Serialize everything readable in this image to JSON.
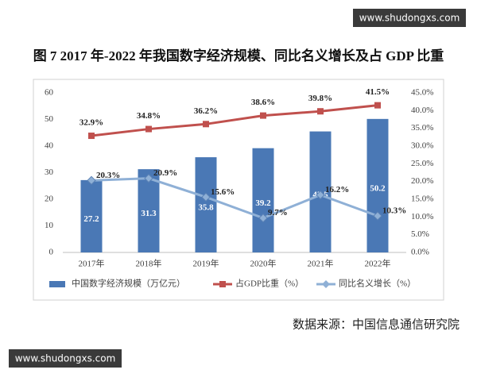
{
  "watermarks": [
    "www.shudongxs.com",
    "www.shudongxs.com"
  ],
  "source": "数据来源：中国信息通信研究院",
  "chart_data": {
    "type": "bar",
    "title": "图 7 2017 年-2022 年我国数字经济规模、同比名义增长及占 GDP 比重",
    "categories": [
      "2017年",
      "2018年",
      "2019年",
      "2020年",
      "2021年",
      "2022年"
    ],
    "ylim": [
      0,
      60
    ],
    "yticks": [
      0,
      10,
      20,
      30,
      40,
      50,
      60
    ],
    "y2lim": [
      0,
      45
    ],
    "y2ticks": [
      {
        "value": 0,
        "label": "0.0%"
      },
      {
        "value": 5,
        "label": "5.0%"
      },
      {
        "value": 10,
        "label": "10.0%"
      },
      {
        "value": 15,
        "label": "15.0%"
      },
      {
        "value": 20,
        "label": "20.0%"
      },
      {
        "value": 25,
        "label": "25.0%"
      },
      {
        "value": 30,
        "label": "30.0%"
      },
      {
        "value": 35,
        "label": "35.0%"
      },
      {
        "value": 40,
        "label": "40.0%"
      },
      {
        "value": 45,
        "label": "45.0%"
      }
    ],
    "grid": false,
    "series": [
      {
        "name": "中国数字经济规模（万亿元）",
        "type": "bar",
        "color": "#4a78b5",
        "values": [
          27.2,
          31.3,
          35.8,
          39.2,
          45.5,
          50.2
        ]
      },
      {
        "name": "占GDP比重（%）",
        "type": "line",
        "axis": "y2",
        "color": "#c0504d",
        "values": [
          32.9,
          34.8,
          36.2,
          38.6,
          39.8,
          41.5
        ],
        "value_labels": [
          "32.9%",
          "34.8%",
          "36.2%",
          "38.6%",
          "39.8%",
          "41.5%"
        ]
      },
      {
        "name": "同比名义增长（%）",
        "type": "line",
        "axis": "y2",
        "color": "#8fb0d6",
        "values": [
          20.3,
          20.9,
          15.6,
          9.7,
          16.2,
          10.3
        ],
        "value_labels": [
          "20.3%",
          "20.9%",
          "15.6%",
          "9.7%",
          "16.2%",
          "10.3%"
        ]
      }
    ]
  }
}
